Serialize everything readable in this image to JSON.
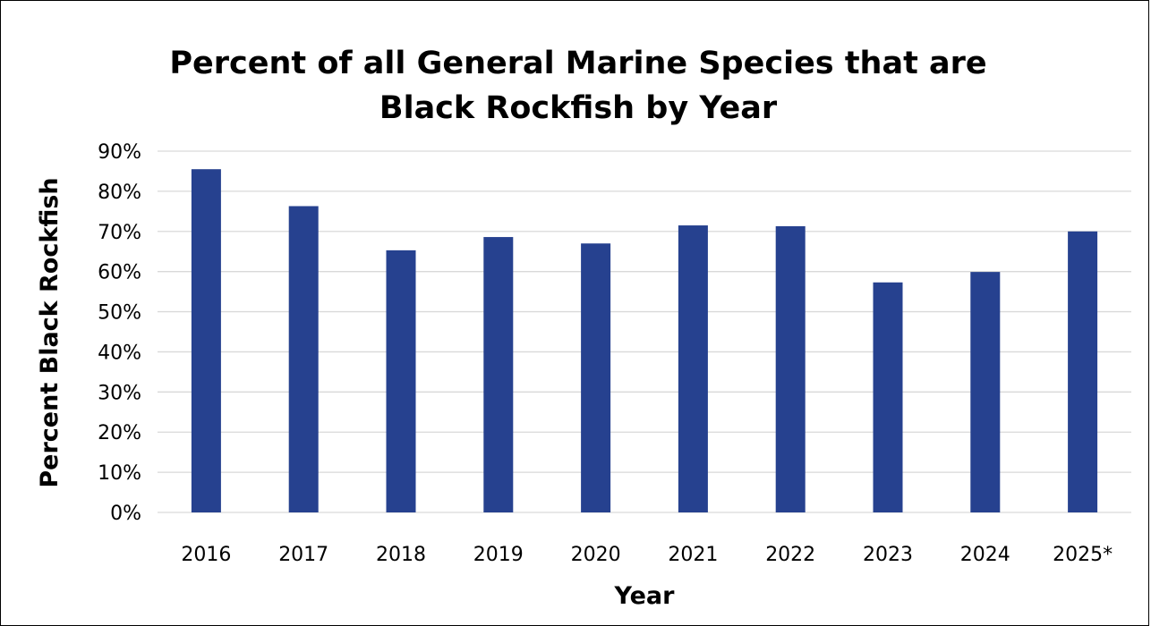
{
  "chart_data": {
    "type": "bar",
    "title_lines": [
      "Percent of all General Marine Species that are",
      "Black Rockfish by Year"
    ],
    "xlabel": "Year",
    "ylabel": "Percent Black Rockfish",
    "categories": [
      "2016",
      "2017",
      "2018",
      "2019",
      "2020",
      "2021",
      "2022",
      "2023",
      "2024",
      "2025*"
    ],
    "values": [
      85.5,
      76.3,
      65.3,
      68.6,
      67.0,
      71.5,
      71.3,
      57.3,
      59.9,
      70.0
    ],
    "y_ticks": [
      "0%",
      "10%",
      "20%",
      "30%",
      "40%",
      "50%",
      "60%",
      "70%",
      "80%",
      "90%"
    ],
    "ylim": [
      0,
      90
    ],
    "y_tick_step": 10,
    "grid": true,
    "legend": "none",
    "colors": {
      "bar": "#26418F",
      "grid": "#D9D9D9"
    }
  }
}
